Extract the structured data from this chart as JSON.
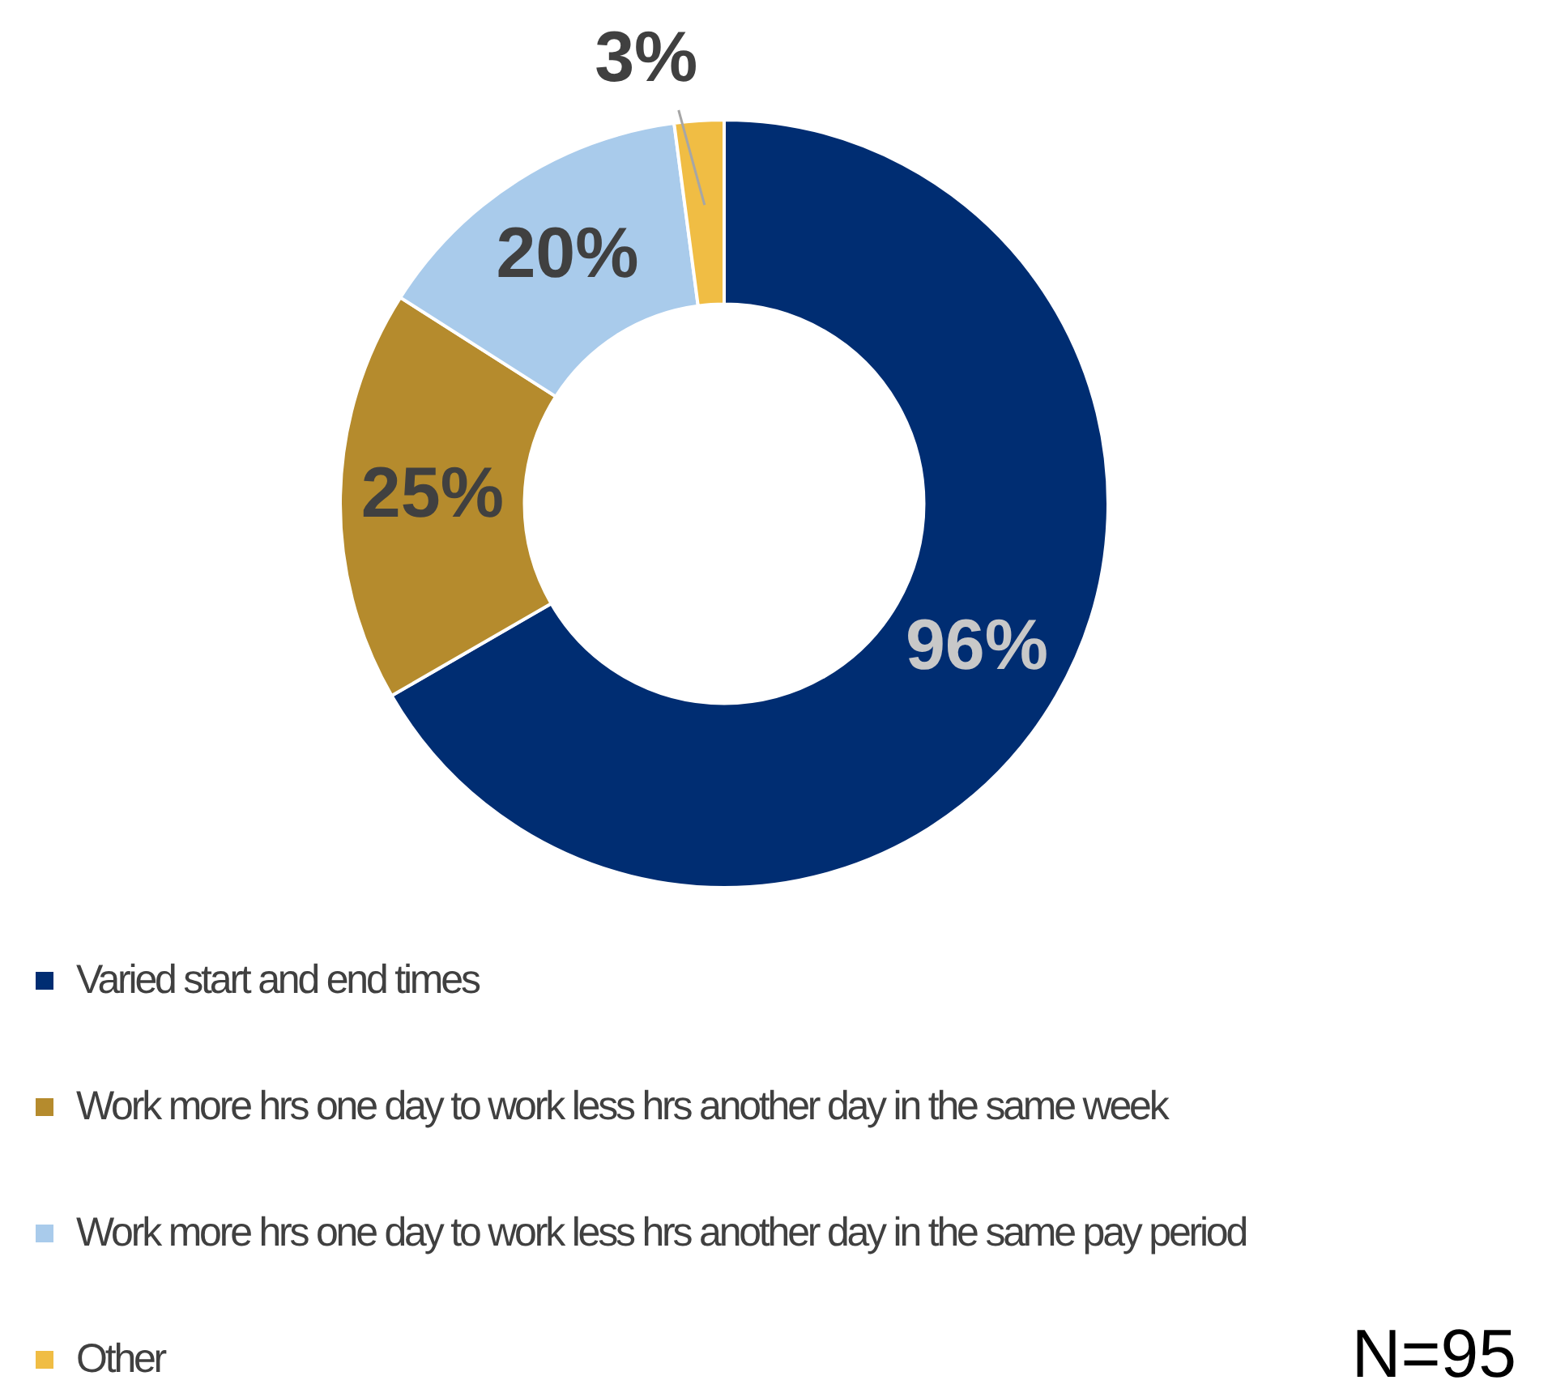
{
  "chart_data": {
    "type": "donut",
    "categories": [
      "Varied start and end times",
      "Work more hrs one day to work less hrs another day in the same week",
      "Work more hrs one day to work less hrs another day in the same pay period",
      "Other"
    ],
    "values": [
      96,
      25,
      20,
      3
    ],
    "colors": [
      "#002d72",
      "#b58b2d",
      "#a9cbeb",
      "#f0bd44"
    ],
    "value_labels": [
      "96%",
      "25%",
      "20%",
      "3%"
    ],
    "legend": "bottom",
    "annotations": [
      "N=95"
    ]
  }
}
